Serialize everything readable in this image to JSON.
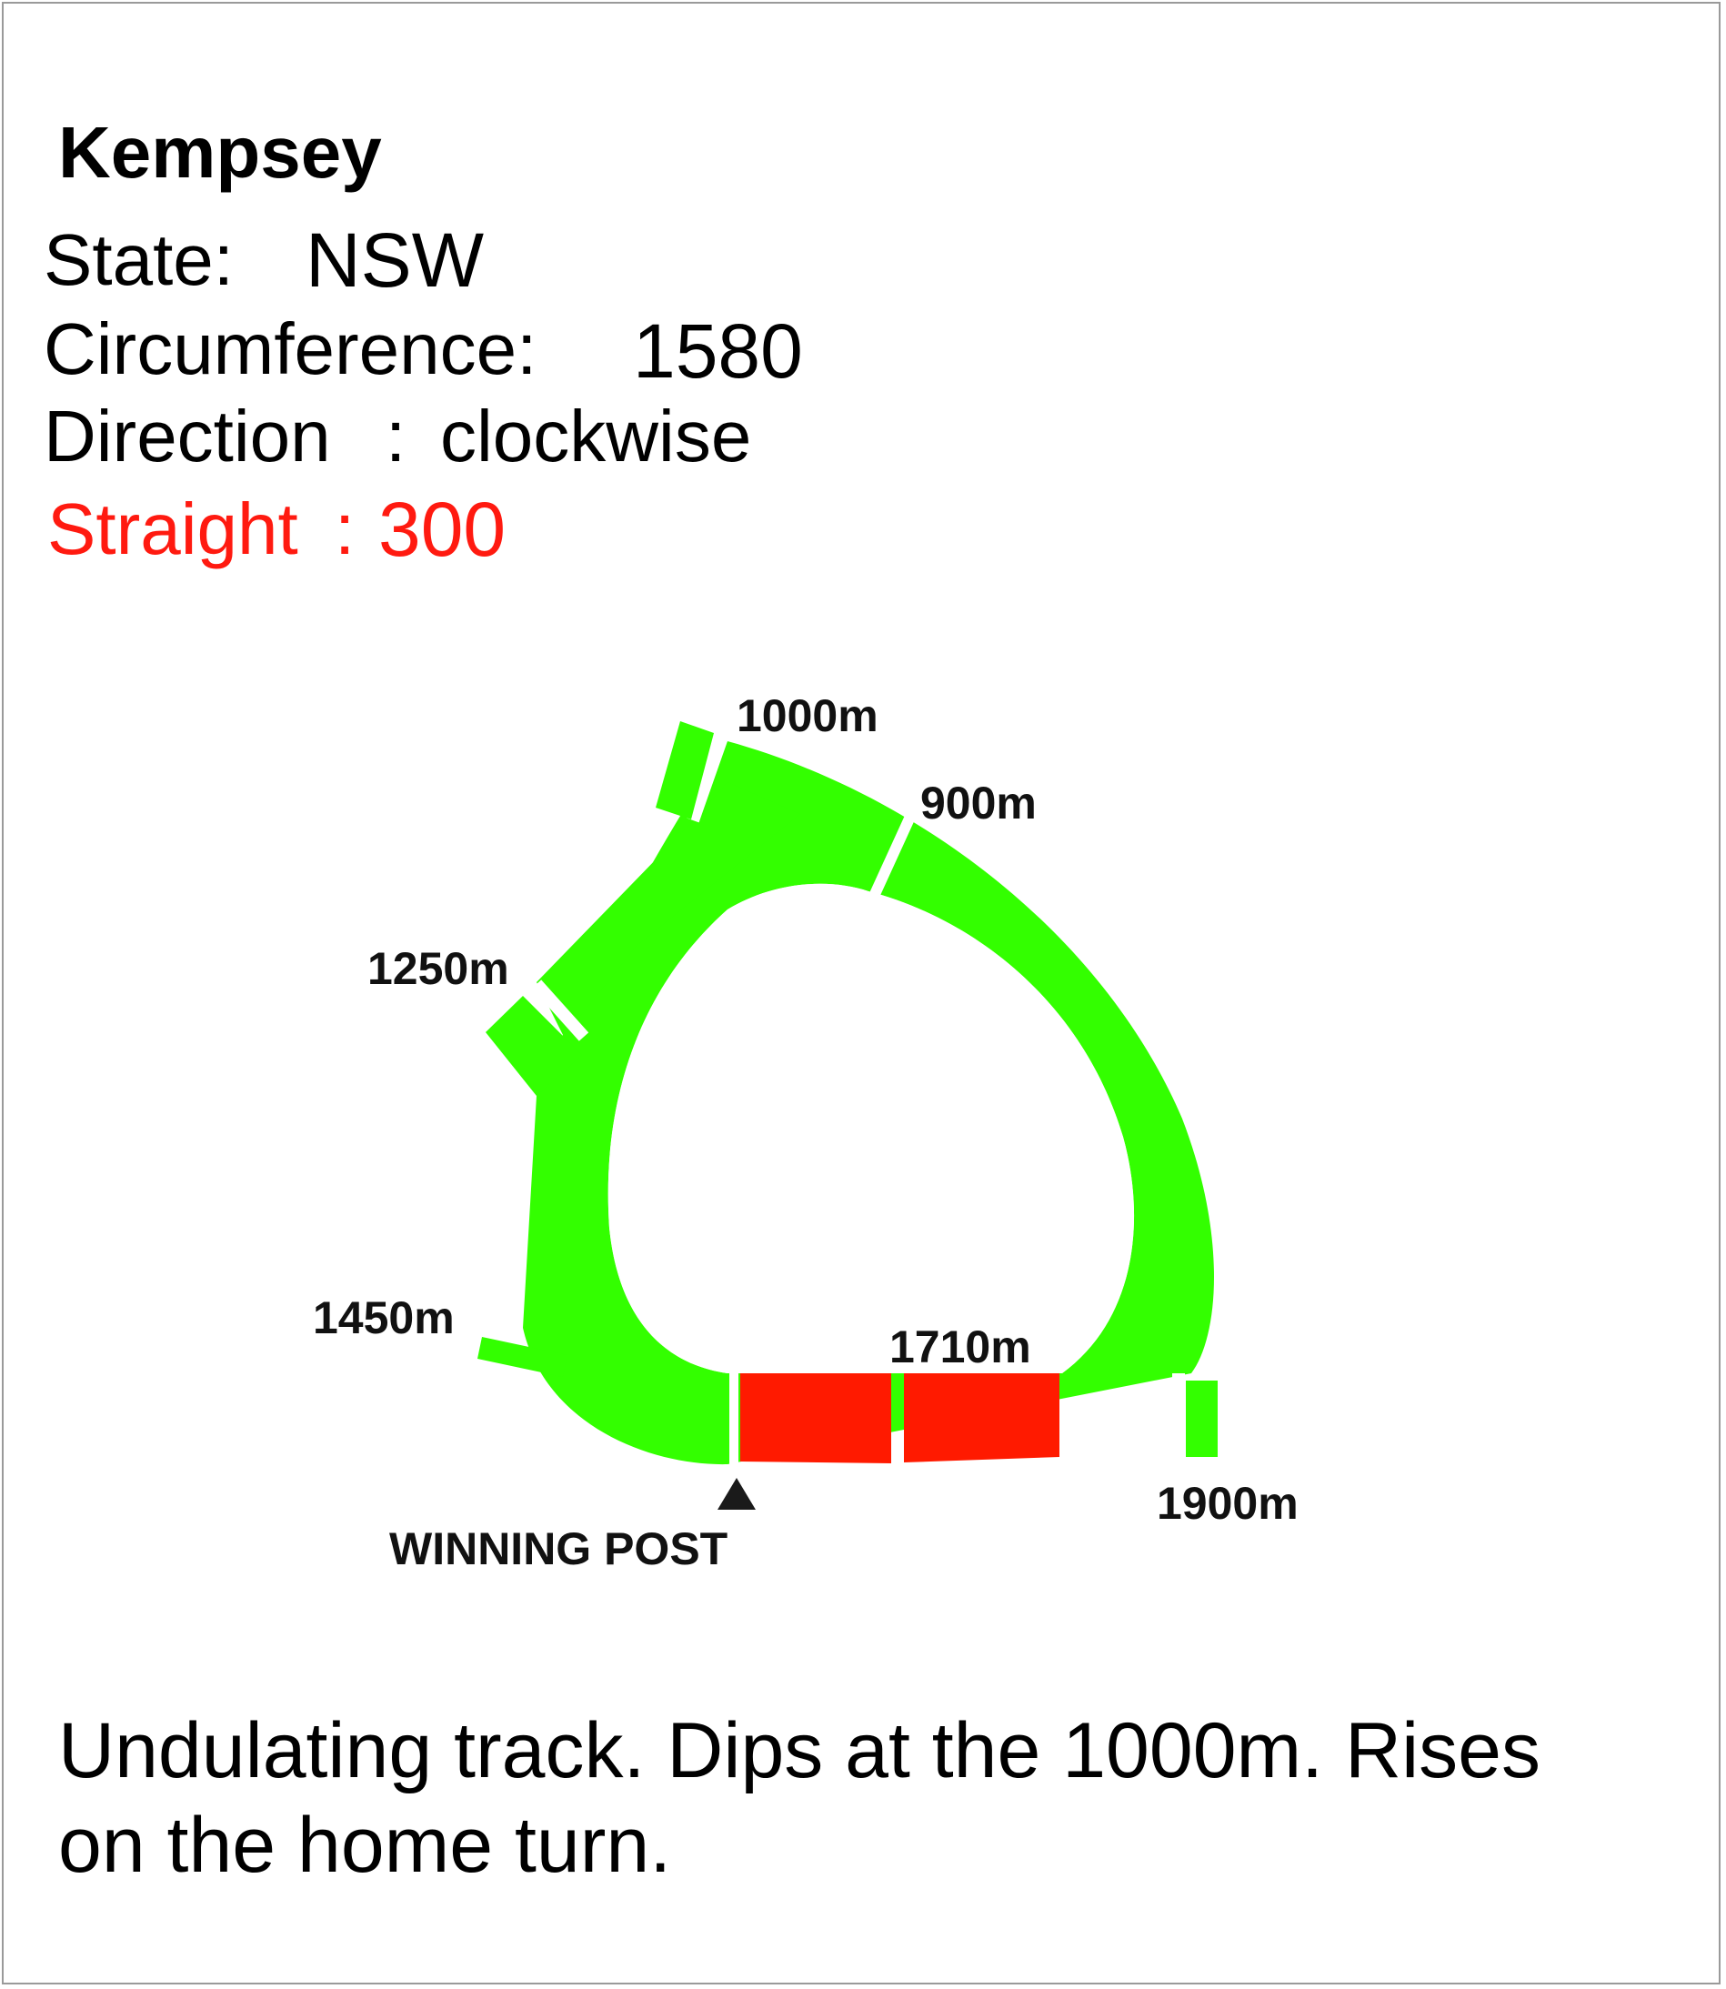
{
  "title": "Kempsey",
  "info": {
    "state_label": "State:",
    "state_value": "NSW",
    "circumference_label": "Circumference:",
    "circumference_value": "1580",
    "direction_label": "Direction",
    "direction_colon": ":",
    "direction_value": "clockwise",
    "straight_label": "Straight",
    "straight_colon": ":",
    "straight_value": "300"
  },
  "markers": {
    "m1000": "1000m",
    "m900": "900m",
    "m1250": "1250m",
    "m1450": "1450m",
    "m1710": "1710m",
    "m1900": "1900m",
    "winning_post": "WINNING POST"
  },
  "description": {
    "line1": "Undulating track. Dips at the 1000m. Rises",
    "line2": "on the home turn."
  },
  "colors": {
    "track": "#33ff00",
    "straight": "#ff1a00",
    "highlight_text": "#ff1a10"
  }
}
